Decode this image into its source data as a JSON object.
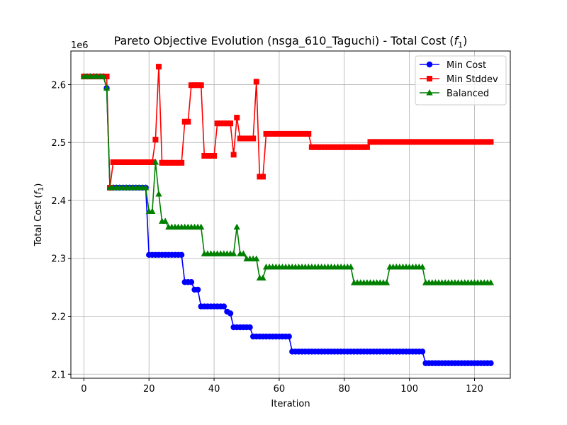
{
  "chart_data": {
    "type": "line",
    "title": "Pareto Objective Evolution (nsga_610_Taguchi) - Total Cost (",
    "title_math": "f",
    "title_math_sub": "1",
    "title_suffix": ")",
    "xlabel": "Iteration",
    "ylabel": "Total Cost (",
    "ylabel_math": "f",
    "ylabel_math_sub": "1",
    "ylabel_suffix": ")",
    "y_multiplier_label": "1e6",
    "xlim": [
      -4,
      131
    ],
    "ylim": [
      2.093,
      2.658
    ],
    "xticks": [
      0,
      20,
      40,
      60,
      80,
      100,
      120
    ],
    "xtick_labels": [
      "0",
      "20",
      "40",
      "60",
      "80",
      "100",
      "120"
    ],
    "yticks": [
      2.1,
      2.2,
      2.3,
      2.4,
      2.5,
      2.6
    ],
    "ytick_labels": [
      "2.1",
      "2.2",
      "2.3",
      "2.4",
      "2.5",
      "2.6"
    ],
    "grid": true,
    "legend_position": "upper-right",
    "series": [
      {
        "name": "Min Cost",
        "color": "#0000ff",
        "marker": "circle",
        "segments": [
          [
            0,
            6,
            2.614
          ],
          [
            7,
            7,
            2.594
          ],
          [
            8,
            19,
            2.422
          ],
          [
            20,
            30,
            2.306
          ],
          [
            31,
            33,
            2.259
          ],
          [
            34,
            35,
            2.246
          ],
          [
            36,
            43,
            2.217
          ],
          [
            44,
            44,
            2.208
          ],
          [
            45,
            45,
            2.205
          ],
          [
            46,
            51,
            2.181
          ],
          [
            52,
            63,
            2.165
          ],
          [
            64,
            104,
            2.139
          ],
          [
            105,
            125,
            2.119
          ]
        ]
      },
      {
        "name": "Min Stddev",
        "color": "#ff0000",
        "marker": "square",
        "segments": [
          [
            0,
            7,
            2.614
          ],
          [
            8,
            8,
            2.422
          ],
          [
            9,
            21,
            2.466
          ],
          [
            22,
            22,
            2.505
          ],
          [
            23,
            23,
            2.631
          ],
          [
            24,
            30,
            2.465
          ],
          [
            31,
            32,
            2.536
          ],
          [
            33,
            36,
            2.599
          ],
          [
            37,
            40,
            2.477
          ],
          [
            41,
            45,
            2.533
          ],
          [
            46,
            46,
            2.479
          ],
          [
            47,
            47,
            2.543
          ],
          [
            48,
            52,
            2.507
          ],
          [
            53,
            53,
            2.605
          ],
          [
            54,
            55,
            2.441
          ],
          [
            56,
            69,
            2.515
          ],
          [
            70,
            87,
            2.492
          ],
          [
            88,
            125,
            2.501
          ]
        ]
      },
      {
        "name": "Balanced",
        "color": "#008000",
        "marker": "triangle",
        "segments": [
          [
            0,
            6,
            2.614
          ],
          [
            7,
            7,
            2.594
          ],
          [
            8,
            19,
            2.422
          ],
          [
            20,
            21,
            2.381
          ],
          [
            22,
            22,
            2.466
          ],
          [
            23,
            23,
            2.411
          ],
          [
            24,
            25,
            2.364
          ],
          [
            26,
            36,
            2.354
          ],
          [
            37,
            46,
            2.308
          ],
          [
            47,
            47,
            2.354
          ],
          [
            48,
            49,
            2.308
          ],
          [
            50,
            53,
            2.299
          ],
          [
            54,
            55,
            2.266
          ],
          [
            56,
            82,
            2.285
          ],
          [
            83,
            93,
            2.258
          ],
          [
            94,
            104,
            2.285
          ],
          [
            105,
            125,
            2.258
          ]
        ]
      }
    ]
  }
}
